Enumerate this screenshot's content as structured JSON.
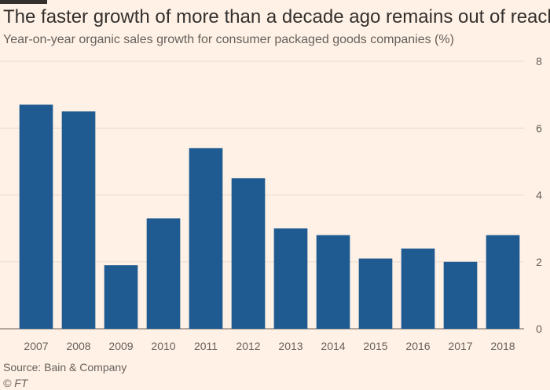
{
  "chart_data": {
    "type": "bar",
    "title": "The faster growth of more than a decade ago remains out of reach",
    "subtitle": "Year-on-year organic sales growth for consumer packaged goods companies (%)",
    "categories": [
      "2007",
      "2008",
      "2009",
      "2010",
      "2011",
      "2012",
      "2013",
      "2014",
      "2015",
      "2016",
      "2017",
      "2018"
    ],
    "values": [
      6.7,
      6.5,
      1.9,
      3.3,
      5.4,
      4.5,
      3.0,
      2.8,
      2.1,
      2.4,
      2.0,
      2.8
    ],
    "ylim": [
      0,
      8
    ],
    "yticks": [
      0,
      2,
      4,
      6,
      8
    ],
    "xlabel": "",
    "ylabel": "",
    "grid": true,
    "bar_color": "#1f5b91",
    "source": "Source: Bain & Company",
    "credit": "© FT"
  }
}
